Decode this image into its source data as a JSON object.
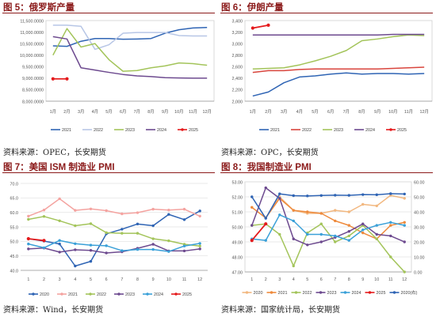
{
  "panels": [
    {
      "title": "图 5：俄罗斯产量",
      "source": "资料来源：OPEC，长安期货",
      "chart_data": {
        "type": "line",
        "categories": [
          "1月",
          "2月",
          "3月",
          "4月",
          "5月",
          "6月",
          "7月",
          "8月",
          "9月",
          "10月",
          "11月",
          "12月"
        ],
        "ylim": [
          8000,
          11500
        ],
        "yticks": [
          8000,
          8500,
          9000,
          9500,
          10000,
          10500,
          11000,
          11500
        ],
        "ytick_labels": [
          "8,000.0000",
          "8,500.0000",
          "9,000.0000",
          "9,500.0000",
          "10,000.0000",
          "10,500.0000",
          "11,000.0000",
          "11,500.0000"
        ],
        "series": [
          {
            "name": "2021",
            "color": "#2f64b4",
            "values": [
              10400,
              10380,
              10600,
              10720,
              10720,
              10690,
              10700,
              10720,
              10950,
              11100,
              11180,
              11200
            ]
          },
          {
            "name": "2022",
            "color": "#b7c6e6",
            "values": [
              11300,
              11300,
              11250,
              10250,
              10450,
              10950,
              10980,
              10980,
              10980,
              10850,
              10830,
              10830
            ]
          },
          {
            "name": "2023",
            "color": "#a3c45a",
            "values": [
              10000,
              11150,
              10350,
              10500,
              9800,
              9300,
              9330,
              9450,
              9530,
              9660,
              9630,
              9560
            ]
          },
          {
            "name": "2024",
            "color": "#6d4a8f",
            "values": [
              10800,
              10700,
              9450,
              9350,
              9250,
              9160,
              9100,
              9070,
              9020,
              9010,
              9000,
              9000
            ]
          },
          {
            "name": "2025",
            "color": "#e41a1c",
            "values": [
              8970,
              8970,
              null,
              null,
              null,
              null,
              null,
              null,
              null,
              null,
              null,
              null
            ]
          }
        ]
      }
    },
    {
      "title": "图 6：伊朗产量",
      "source": "资料来源：OPC，长安期货",
      "chart_data": {
        "type": "line",
        "categories": [
          "1月",
          "2月",
          "3月",
          "4月",
          "5月",
          "6月",
          "7月",
          "8月",
          "9月",
          "10月",
          "11月",
          "12月"
        ],
        "ylim": [
          2000,
          3400
        ],
        "yticks": [
          2000,
          2200,
          2400,
          2600,
          2800,
          3000,
          3200,
          3400
        ],
        "ytick_labels": [
          "2,000",
          "2,200",
          "2,400",
          "2,600",
          "2,800",
          "3,000",
          "3,200",
          "3,400"
        ],
        "series": [
          {
            "name": "2021",
            "color": "#2f64b4",
            "values": [
              2090,
              2160,
              2320,
              2420,
              2440,
              2470,
              2490,
              2470,
              2480,
              2480,
              2470,
              2480
            ]
          },
          {
            "name": "2022",
            "color": "#d9453d",
            "values": [
              2500,
              2530,
              2530,
              2550,
              2560,
              2560,
              2560,
              2560,
              2560,
              2570,
              2580,
              2590
            ]
          },
          {
            "name": "2023",
            "color": "#a3c45a",
            "values": [
              2560,
              2570,
              2580,
              2630,
              2700,
              2780,
              2880,
              3050,
              3080,
              3120,
              3150,
              3140
            ]
          },
          {
            "name": "2024",
            "color": "#6d4a8f",
            "values": [
              3150,
              3150,
              3150,
              3150,
              3150,
              3150,
              3150,
              3150,
              3150,
              3160,
              3160,
              3160
            ]
          },
          {
            "name": "2025",
            "color": "#e41a1c",
            "values": [
              3270,
              3320,
              null,
              null,
              null,
              null,
              null,
              null,
              null,
              null,
              null,
              null
            ]
          }
        ]
      }
    },
    {
      "title": "图 7：美国 ISM 制造业 PMI",
      "source": "资料来源：Wind，长安期货",
      "chart_data": {
        "type": "line",
        "categories": [
          "1",
          "2",
          "3",
          "4",
          "5",
          "6",
          "7",
          "8",
          "9",
          "10",
          "11",
          "12"
        ],
        "ylim": [
          40,
          70
        ],
        "yticks": [
          40,
          45,
          50,
          55,
          60,
          65,
          70
        ],
        "ytick_labels": [
          "40.0",
          "45.0",
          "50.0",
          "55.0",
          "60.0",
          "65.0",
          "70.0"
        ],
        "series": [
          {
            "name": "2020",
            "color": "#2f64b4",
            "values": [
              50.9,
              50.1,
              49.1,
              41.5,
              43.1,
              52.6,
              54.2,
              56.0,
              55.4,
              59.3,
              57.5,
              60.5
            ]
          },
          {
            "name": "2021",
            "color": "#f4a3a0",
            "values": [
              58.7,
              60.8,
              64.7,
              60.7,
              61.2,
              60.6,
              59.5,
              59.9,
              61.1,
              60.8,
              61.1,
              58.7
            ]
          },
          {
            "name": "2022",
            "color": "#a3c45a",
            "values": [
              57.6,
              58.6,
              57.1,
              55.4,
              56.1,
              53.0,
              52.8,
              52.8,
              50.9,
              50.2,
              49.0,
              48.4
            ]
          },
          {
            "name": "2023",
            "color": "#6d4a8f",
            "values": [
              47.4,
              47.7,
              46.3,
              47.1,
              46.9,
              46.0,
              46.4,
              47.6,
              49.0,
              46.7,
              46.7,
              47.4
            ]
          },
          {
            "name": "2024",
            "color": "#3aa0d8",
            "values": [
              49.1,
              47.8,
              50.3,
              49.2,
              48.7,
              48.5,
              46.8,
              47.2,
              47.2,
              46.5,
              48.4,
              49.3
            ]
          },
          {
            "name": "2025",
            "color": "#e41a1c",
            "values": [
              50.9,
              50.3,
              null,
              null,
              null,
              null,
              null,
              null,
              null,
              null,
              null,
              null
            ]
          }
        ]
      }
    },
    {
      "title": "图 8：我国制造业 PMI",
      "source": "资料来源：国家统计局，长安期货",
      "chart_data": {
        "type": "line",
        "categories": [
          "1",
          "2",
          "3",
          "4",
          "5",
          "6",
          "7",
          "8",
          "9",
          "10",
          "11",
          "12"
        ],
        "ylim": [
          47,
          53
        ],
        "yticks": [
          47,
          48,
          49,
          50,
          51,
          52,
          53
        ],
        "ytick_labels": [
          "47.00",
          "48.00",
          "49.00",
          "50.00",
          "51.00",
          "52.00",
          "53.00"
        ],
        "y2lim": [
          0,
          60
        ],
        "y2ticks": [
          0,
          10,
          20,
          30,
          40,
          50,
          60
        ],
        "y2tick_labels": [
          "0.00",
          "10.00",
          "20.00",
          "30.00",
          "40.00",
          "50.00",
          "60.00"
        ],
        "series": [
          {
            "name": "2020",
            "color": "#f2b880",
            "values": [
              51.3,
              50.6,
              52.0,
              51.1,
              50.9,
              50.9,
              51.1,
              51.0,
              51.5,
              51.4,
              52.1,
              51.9
            ],
            "axis": "left"
          },
          {
            "name": "2021",
            "color": "#ee8a3c",
            "values": [
              51.3,
              50.6,
              51.9,
              51.1,
              51.0,
              50.9,
              50.4,
              50.1,
              49.6,
              49.2,
              50.1,
              50.3
            ],
            "axis": "left"
          },
          {
            "name": "2022",
            "color": "#a3c45a",
            "values": [
              50.1,
              50.2,
              49.5,
              47.4,
              49.6,
              50.2,
              49.0,
              49.4,
              50.1,
              49.2,
              48.0,
              47.0
            ],
            "axis": "left"
          },
          {
            "name": "2023",
            "color": "#6d4a8f",
            "values": [
              50.1,
              52.6,
              51.9,
              49.2,
              48.8,
              49.0,
              49.3,
              49.7,
              50.2,
              49.5,
              49.4,
              49.0
            ],
            "axis": "left"
          },
          {
            "name": "2024",
            "color": "#3aa0d8",
            "values": [
              49.2,
              49.1,
              50.8,
              50.4,
              49.5,
              49.5,
              49.4,
              49.1,
              49.8,
              50.1,
              50.3,
              50.1
            ],
            "axis": "left"
          },
          {
            "name": "2025",
            "color": "#e41a1c",
            "values": [
              49.1,
              50.2,
              null,
              null,
              null,
              null,
              null,
              null,
              null,
              null,
              null,
              null
            ],
            "axis": "left"
          },
          {
            "name": "2020(右)",
            "color": "#2f64b4",
            "values": [
              50.0,
              35.7,
              52.0,
              50.8,
              50.6,
              50.9,
              51.1,
              51.0,
              51.5,
              51.4,
              52.1,
              51.9
            ],
            "axis": "right"
          }
        ]
      }
    }
  ]
}
